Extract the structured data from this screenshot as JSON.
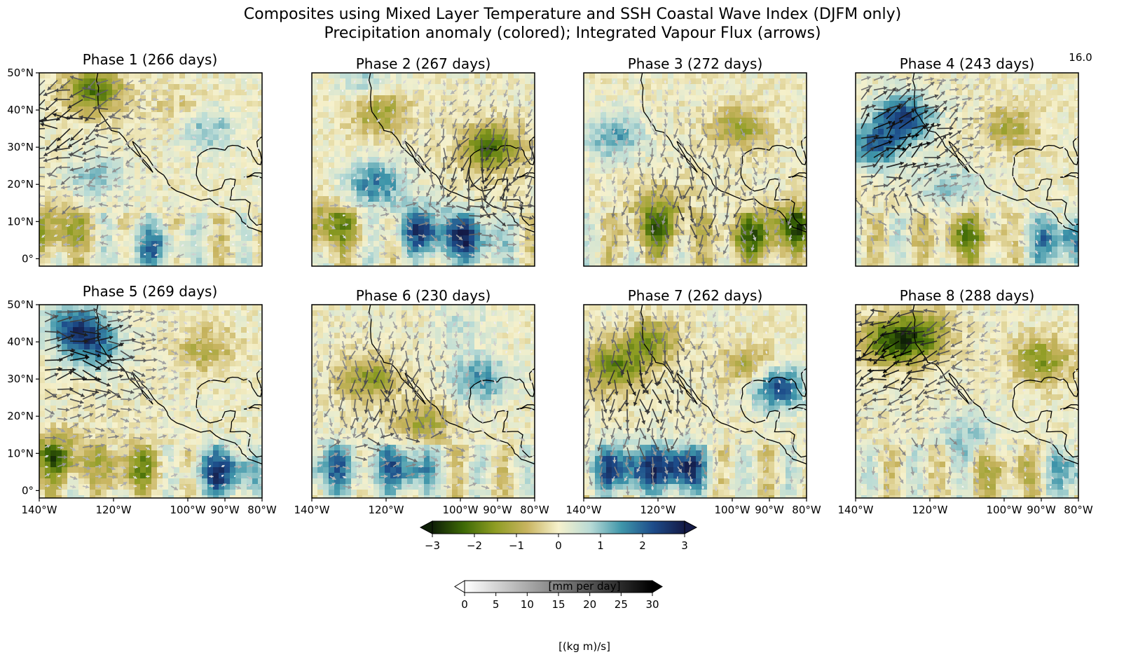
{
  "figure": {
    "title_line1": "Composites using Mixed Layer Temperature and SSH Coastal Wave Index (DJFM only)",
    "title_line2": "Precipitation anomaly (colored); Integrated Vapour Flux (arrows)",
    "corner_annotation": "16.0"
  },
  "chart_data": {
    "type": "heatmap",
    "field": "precipitation anomaly (colored) with integrated vapour flux vectors (arrows)",
    "grid": false,
    "lon_range": [
      -140,
      -80
    ],
    "lat_range": [
      -2,
      50
    ],
    "x_ticks": [
      "140°W",
      "120°W",
      "100°W",
      "90°W",
      "80°W"
    ],
    "x_tick_values": [
      -140,
      -120,
      -100,
      -90,
      -80
    ],
    "y_ticks": [
      "50°N",
      "40°N",
      "30°N",
      "20°N",
      "10°N",
      "0°"
    ],
    "y_tick_values": [
      50,
      40,
      30,
      20,
      10,
      0
    ],
    "panels": [
      {
        "title": "Phase 1 (266 days)",
        "phase": 1,
        "days": 266,
        "anomalies": [
          {
            "lon": -125,
            "lat": 45,
            "value": -2.0
          },
          {
            "lon": -135,
            "lat": 8,
            "value": -1.5
          },
          {
            "lon": -95,
            "lat": 35,
            "value": 1.2
          },
          {
            "lon": -125,
            "lat": 22,
            "value": 1.0
          },
          {
            "lon": -110,
            "lat": 3,
            "value": 1.5
          },
          {
            "lon": -102,
            "lat": 40,
            "value": -0.6
          }
        ],
        "flux_center": {
          "lon": -133,
          "lat": 37
        },
        "flux_dir": 195,
        "flux_max": 25
      },
      {
        "title": "Phase 2 (267 days)",
        "phase": 2,
        "days": 267,
        "anomalies": [
          {
            "lon": -122,
            "lat": 40,
            "value": -1.5
          },
          {
            "lon": -92,
            "lat": 30,
            "value": -2.2
          },
          {
            "lon": -123,
            "lat": 20,
            "value": 1.8
          },
          {
            "lon": -110,
            "lat": 8,
            "value": 2.0
          },
          {
            "lon": -135,
            "lat": 9,
            "value": -1.8
          },
          {
            "lon": -98,
            "lat": 5,
            "value": 2.2
          },
          {
            "lon": -125,
            "lat": 47,
            "value": 1.0
          }
        ],
        "flux_center": {
          "lon": -93,
          "lat": 25
        },
        "flux_dir": 250,
        "flux_max": 22
      },
      {
        "title": "Phase 3 (272 days)",
        "phase": 3,
        "days": 272,
        "anomalies": [
          {
            "lon": -132,
            "lat": 33,
            "value": 1.4
          },
          {
            "lon": -98,
            "lat": 35,
            "value": -1.3
          },
          {
            "lon": -120,
            "lat": 8,
            "value": -1.6
          },
          {
            "lon": -95,
            "lat": 6,
            "value": -1.8
          },
          {
            "lon": -82,
            "lat": 9,
            "value": -2.0
          },
          {
            "lon": -120,
            "lat": 15,
            "value": -0.8
          }
        ],
        "flux_center": {
          "lon": -110,
          "lat": 22
        },
        "flux_dir": 270,
        "flux_max": 18
      },
      {
        "title": "Phase 4 (243 days)",
        "phase": 4,
        "days": 243,
        "anomalies": [
          {
            "lon": -127,
            "lat": 38,
            "value": 2.4
          },
          {
            "lon": -135,
            "lat": 30,
            "value": 1.8
          },
          {
            "lon": -98,
            "lat": 35,
            "value": -1.2
          },
          {
            "lon": -110,
            "lat": 6,
            "value": -1.6
          },
          {
            "lon": -85,
            "lat": 5,
            "value": 2.0
          },
          {
            "lon": -115,
            "lat": 20,
            "value": 1.0
          }
        ],
        "flux_center": {
          "lon": -130,
          "lat": 32
        },
        "flux_dir": 30,
        "flux_max": 28
      },
      {
        "title": "Phase 5 (269 days)",
        "phase": 5,
        "days": 269,
        "anomalies": [
          {
            "lon": -130,
            "lat": 44,
            "value": 2.2
          },
          {
            "lon": -125,
            "lat": 38,
            "value": 1.5
          },
          {
            "lon": -135,
            "lat": 9,
            "value": -2.0
          },
          {
            "lon": -115,
            "lat": 6,
            "value": -1.5
          },
          {
            "lon": -90,
            "lat": 5,
            "value": 2.4
          },
          {
            "lon": -95,
            "lat": 38,
            "value": -1.0
          }
        ],
        "flux_center": {
          "lon": -130,
          "lat": 36
        },
        "flux_dir": 0,
        "flux_max": 27
      },
      {
        "title": "Phase 6 (230 days)",
        "phase": 6,
        "days": 230,
        "anomalies": [
          {
            "lon": -125,
            "lat": 30,
            "value": -1.4
          },
          {
            "lon": -95,
            "lat": 30,
            "value": 1.6
          },
          {
            "lon": -115,
            "lat": 6,
            "value": 2.2
          },
          {
            "lon": -135,
            "lat": 6,
            "value": 1.8
          },
          {
            "lon": -110,
            "lat": 18,
            "value": -1.2
          },
          {
            "lon": -100,
            "lat": 45,
            "value": 0.6
          }
        ],
        "flux_center": {
          "lon": -120,
          "lat": 28
        },
        "flux_dir": 270,
        "flux_max": 20
      },
      {
        "title": "Phase 7 (262 days)",
        "phase": 7,
        "days": 262,
        "anomalies": [
          {
            "lon": -132,
            "lat": 33,
            "value": -1.8
          },
          {
            "lon": -115,
            "lat": 6,
            "value": 3.0
          },
          {
            "lon": -130,
            "lat": 6,
            "value": 2.4
          },
          {
            "lon": -88,
            "lat": 28,
            "value": 2.4
          },
          {
            "lon": -95,
            "lat": 33,
            "value": -1.3
          },
          {
            "lon": -122,
            "lat": 40,
            "value": -1.5
          }
        ],
        "flux_center": {
          "lon": -125,
          "lat": 30
        },
        "flux_dir": 270,
        "flux_max": 24
      },
      {
        "title": "Phase 8 (288 days)",
        "phase": 8,
        "days": 288,
        "anomalies": [
          {
            "lon": -130,
            "lat": 40,
            "value": -2.2
          },
          {
            "lon": -122,
            "lat": 42,
            "value": -1.6
          },
          {
            "lon": -90,
            "lat": 35,
            "value": -1.6
          },
          {
            "lon": -110,
            "lat": 15,
            "value": 1.0
          },
          {
            "lon": -100,
            "lat": 5,
            "value": -1.0
          },
          {
            "lon": -80,
            "lat": 5,
            "value": 1.5
          }
        ],
        "flux_center": {
          "lon": -128,
          "lat": 38
        },
        "flux_dir": 200,
        "flux_max": 28
      }
    ],
    "colorbar_precip": {
      "label": "[mm per day]",
      "range": [
        -3,
        3
      ],
      "ticks": [
        "−3",
        "−2",
        "−1",
        "0",
        "1",
        "2",
        "3"
      ],
      "tick_values": [
        -3,
        -2,
        -1,
        0,
        1,
        2,
        3
      ],
      "colors": [
        "#0e1f07",
        "#3e6a06",
        "#8f9d24",
        "#c8b460",
        "#f6f1cc",
        "#b9dbd6",
        "#3f96aa",
        "#1d4c8a",
        "#141a46"
      ]
    },
    "colorbar_flux": {
      "label": "[(kg m)/s]",
      "range": [
        0,
        30
      ],
      "ticks": [
        "0",
        "5",
        "10",
        "15",
        "20",
        "25",
        "30"
      ],
      "tick_values": [
        0,
        5,
        10,
        15,
        20,
        25,
        30
      ],
      "colors": [
        "#ffffff",
        "#000000"
      ]
    }
  },
  "colors": {
    "coastline": "#000000",
    "frame": "#000000"
  }
}
